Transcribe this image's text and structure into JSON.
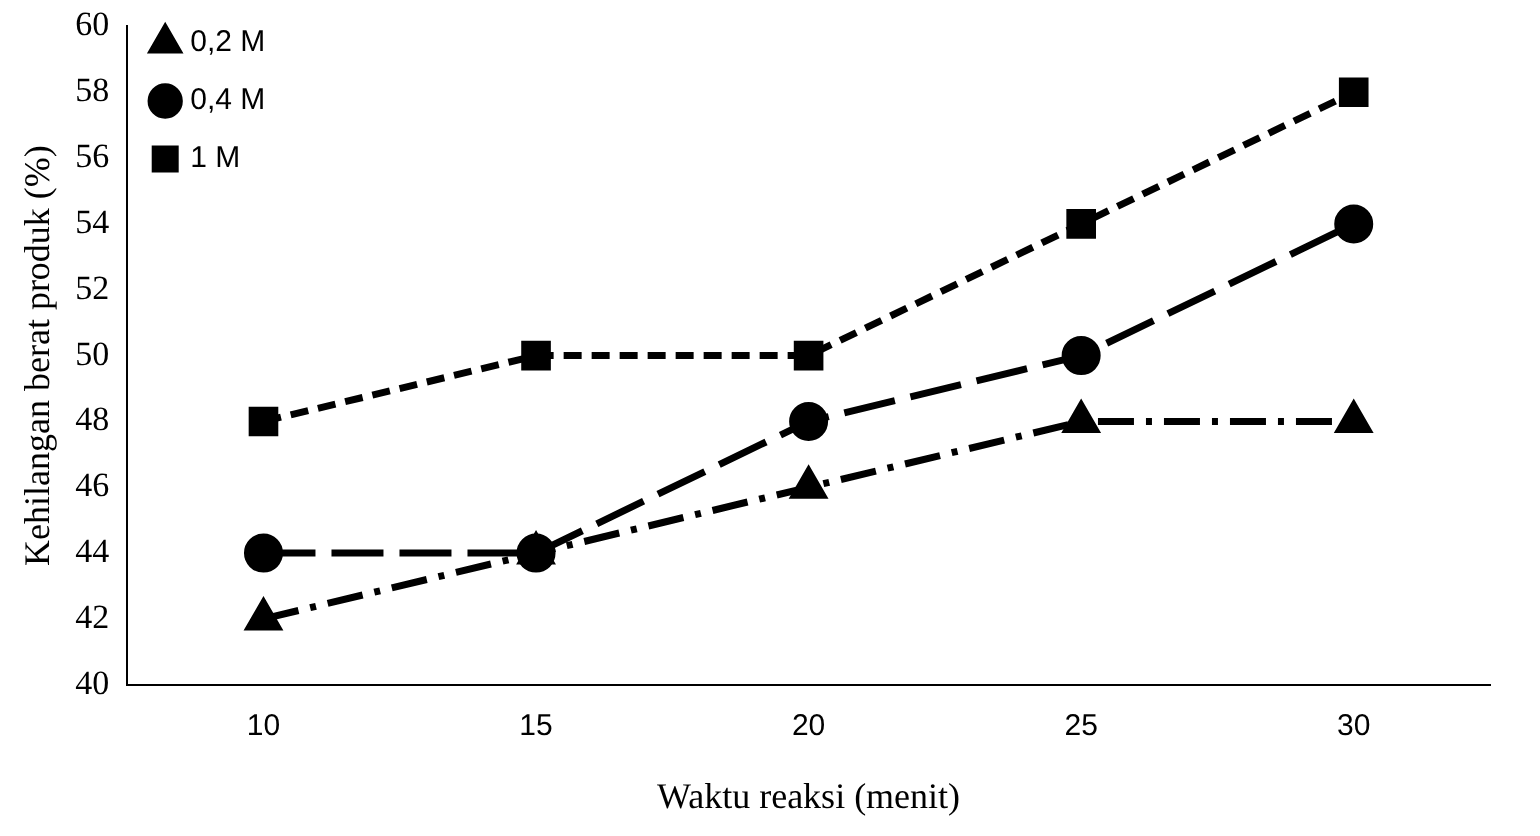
{
  "chart_data": {
    "type": "line",
    "xlabel": "Waktu reaksi (menit)",
    "ylabel": "Kehilangan berat produk (%)",
    "categories": [
      "10",
      "15",
      "20",
      "25",
      "30"
    ],
    "ylim": [
      40,
      60
    ],
    "yticks": [
      40,
      42,
      44,
      46,
      48,
      50,
      52,
      54,
      56,
      58,
      60
    ],
    "grid": false,
    "legend": "top left",
    "series": [
      {
        "name": "0,2 M",
        "color": "#000000",
        "values": [
          42,
          44,
          46,
          48,
          48
        ],
        "marker": "triangle",
        "line_style": "dashed"
      },
      {
        "name": "0,4 M",
        "color": "#000000",
        "values": [
          44,
          44,
          48,
          50,
          54
        ],
        "marker": "circle",
        "line_style": "dashed"
      },
      {
        "name": "1 M",
        "color": "#000000",
        "values": [
          48,
          50,
          50,
          54,
          58
        ],
        "marker": "square",
        "line_style": "dashed"
      }
    ]
  }
}
